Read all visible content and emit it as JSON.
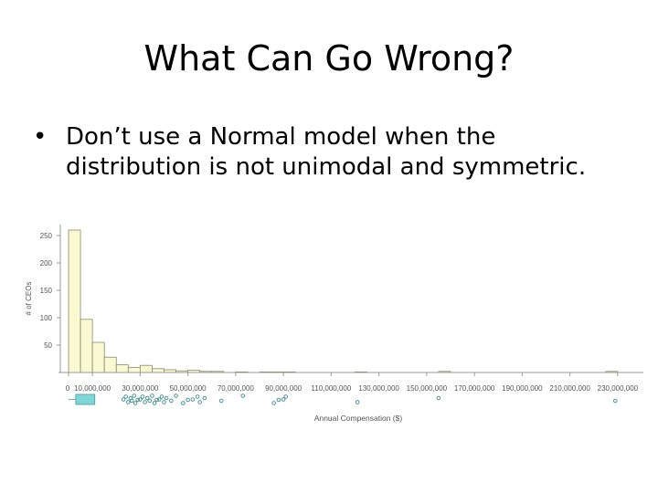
{
  "slide": {
    "title": "What Can Go Wrong?",
    "bullet_mark": "•",
    "bullet_text": "Don’t use a Normal model when the distribution is not unimodal and symmetric."
  },
  "chart_data": {
    "type": "bar",
    "subtype": "histogram with boxplot",
    "title": "",
    "xlabel": "Annual Compensation ($)",
    "ylabel": "# of CEOs",
    "xlim": [
      0,
      240000000
    ],
    "ylim": [
      0,
      270
    ],
    "yticks": [
      50,
      100,
      150,
      200,
      250
    ],
    "xticks": [
      0,
      10000000,
      30000000,
      50000000,
      70000000,
      90000000,
      110000000,
      130000000,
      150000000,
      170000000,
      190000000,
      210000000,
      230000000
    ],
    "xtick_labels": [
      "0",
      "10,000,000",
      "30,000,000",
      "50,000,000",
      "70,000,000",
      "90,000,000",
      "110,000,000",
      "130,000,000",
      "150,000,000",
      "170,000,000",
      "190,000,000",
      "210,000,000",
      "230,000,000"
    ],
    "bin_width": 5000000,
    "bin_starts": [
      0,
      5000000,
      10000000,
      15000000,
      20000000,
      25000000,
      30000000,
      35000000,
      40000000,
      45000000,
      50000000,
      55000000,
      60000000,
      70000000,
      80000000,
      85000000,
      90000000,
      120000000,
      155000000,
      225000000
    ],
    "values": [
      260,
      97,
      55,
      28,
      14,
      9,
      13,
      7,
      5,
      3,
      4,
      2,
      2,
      1,
      1,
      1,
      1,
      1,
      2,
      2
    ],
    "boxplot": {
      "q1": 3000000,
      "q3": 11000000,
      "outliers": [
        23000000,
        24000000,
        25000000,
        26000000,
        26500000,
        27500000,
        28000000,
        29000000,
        30000000,
        31000000,
        32000000,
        33000000,
        34000000,
        35000000,
        36000000,
        37000000,
        38000000,
        39000000,
        40000000,
        41000000,
        43000000,
        45000000,
        48000000,
        50000000,
        52000000,
        54000000,
        55000000,
        57000000,
        64000000,
        73000000,
        86000000,
        88000000,
        90000000,
        91000000,
        121000000,
        155000000,
        229000000
      ]
    },
    "colors": {
      "bar_fill": "#fbf9d2",
      "bar_stroke": "#8a8a6a",
      "box_fill": "#7fd6d6",
      "outlier": "#3d8b8b"
    }
  }
}
